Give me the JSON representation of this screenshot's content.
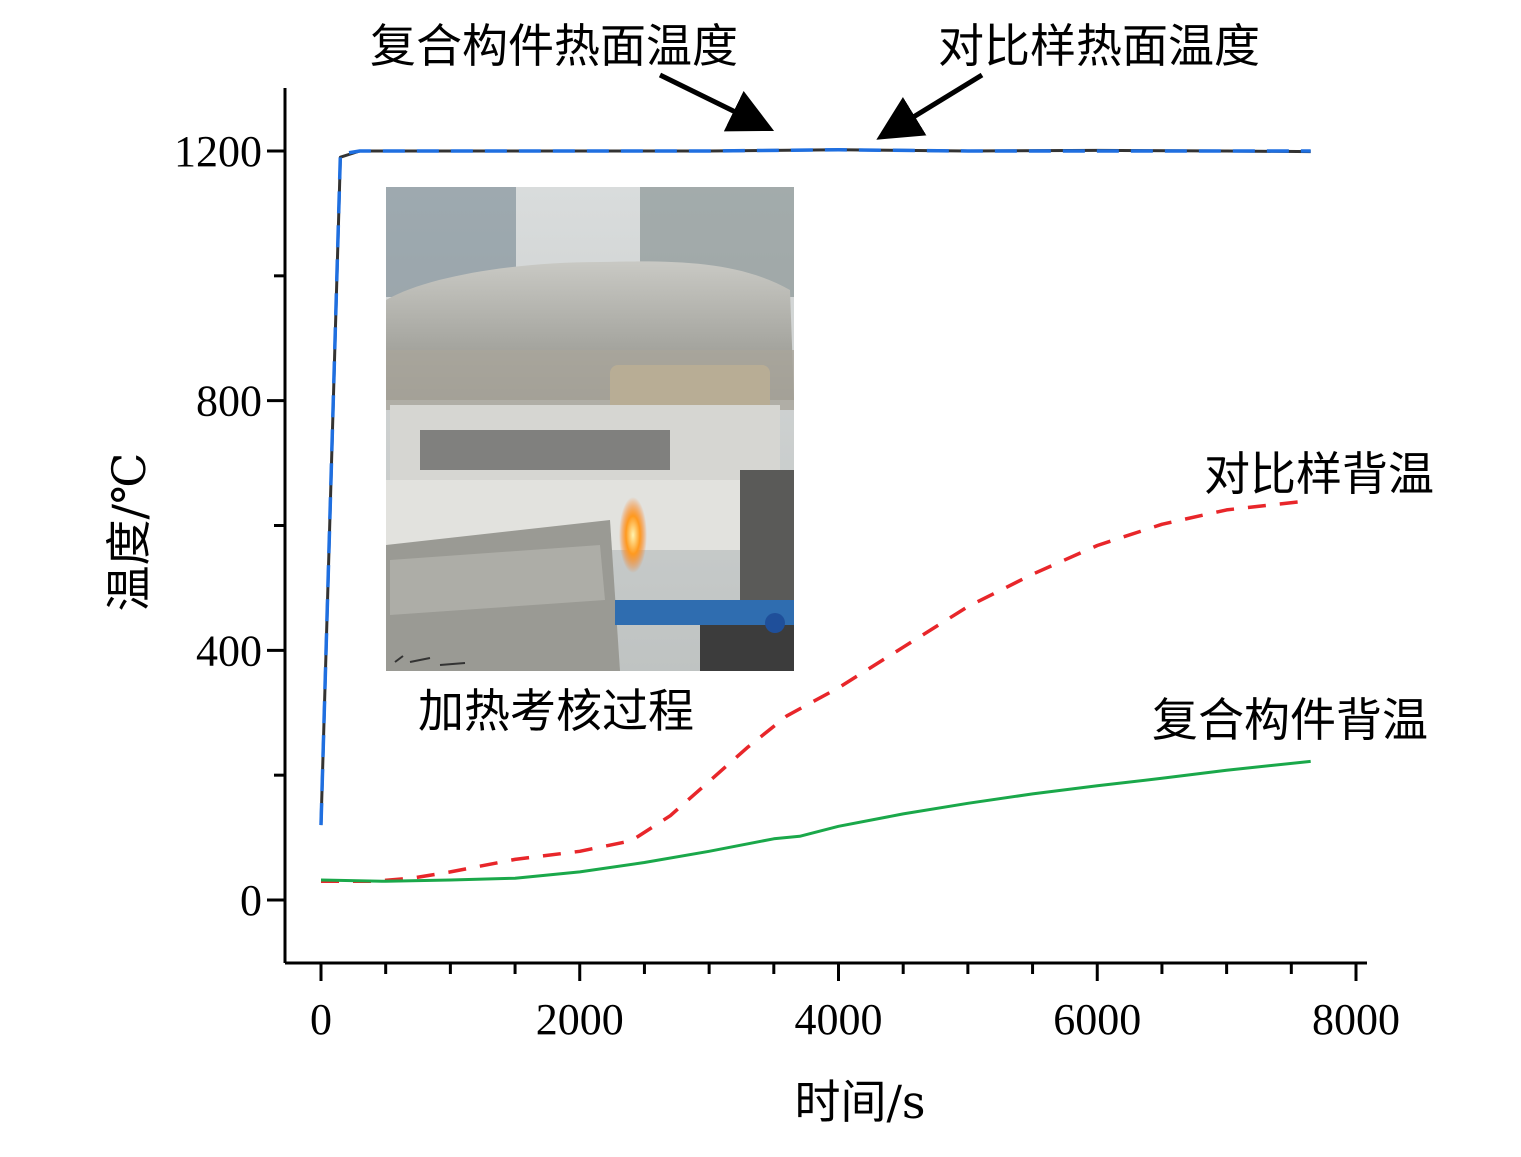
{
  "chart_data": {
    "type": "line",
    "xlabel": "时间/s",
    "ylabel": "温度/℃",
    "xlim": [
      -300,
      8100
    ],
    "ylim": [
      -100,
      1300
    ],
    "xticks": [
      0,
      2000,
      4000,
      6000,
      8000
    ],
    "yticks": [
      0,
      400,
      800,
      1200
    ],
    "series": [
      {
        "name": "复合构件热面温度",
        "color": "#1f6fe0",
        "style": "dashed",
        "x": [
          0,
          150,
          300,
          1000,
          2000,
          3000,
          4000,
          5000,
          6000,
          7000,
          7650
        ],
        "y": [
          120,
          1195,
          1200,
          1200,
          1200,
          1200,
          1202,
          1200,
          1200,
          1200,
          1200
        ]
      },
      {
        "name": "对比样热面温度",
        "color": "#333333",
        "style": "solid",
        "x": [
          0,
          150,
          300,
          1000,
          2000,
          3000,
          4000,
          5000,
          6000,
          7000,
          7650
        ],
        "y": [
          120,
          1190,
          1200,
          1200,
          1200,
          1200,
          1202,
          1200,
          1201,
          1200,
          1199
        ]
      },
      {
        "name": "对比样背温",
        "color": "#e8262a",
        "style": "dashed",
        "x": [
          0,
          400,
          700,
          1000,
          1500,
          2000,
          2400,
          2700,
          3000,
          3300,
          3600,
          4000,
          4500,
          5000,
          5500,
          6000,
          6500,
          7000,
          7650
        ],
        "y": [
          30,
          30,
          35,
          45,
          65,
          78,
          95,
          135,
          190,
          245,
          295,
          340,
          405,
          470,
          522,
          568,
          602,
          625,
          640
        ]
      },
      {
        "name": "复合构件背温",
        "color": "#1aa84a",
        "style": "solid",
        "x": [
          0,
          500,
          1000,
          1500,
          2000,
          2500,
          3000,
          3500,
          3700,
          4000,
          4500,
          5000,
          5500,
          6000,
          6500,
          7000,
          7650
        ],
        "y": [
          32,
          30,
          32,
          35,
          45,
          60,
          78,
          98,
          102,
          118,
          138,
          155,
          170,
          183,
          195,
          208,
          222
        ]
      }
    ],
    "annotations": {
      "hot_composite": "复合构件热面温度",
      "hot_reference": "对比样热面温度",
      "back_reference": "对比样背温",
      "back_composite": "复合构件背温",
      "inset_caption": "加热考核过程"
    },
    "grid": false,
    "legend": "none"
  }
}
